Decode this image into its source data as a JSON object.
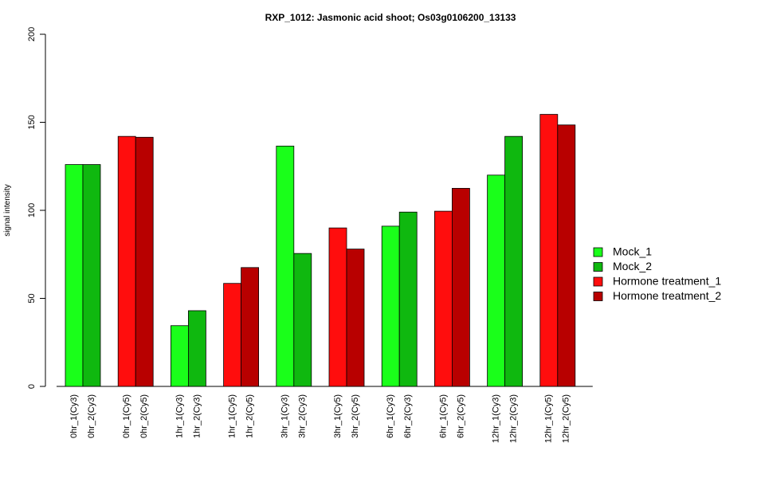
{
  "chart_data": {
    "type": "bar",
    "title": "RXP_1012: Jasmonic acid shoot; Os03g0106200_13133",
    "xlabel": "",
    "ylabel": "signal intensity",
    "ylim": [
      0,
      200
    ],
    "yticks": [
      0,
      50,
      100,
      150,
      200
    ],
    "grid": false,
    "legend_position": "right",
    "categories": [
      "0hr_1(Cy3)",
      "0hr_2(Cy3)",
      "0hr_1(Cy5)",
      "0hr_2(Cy5)",
      "1hr_1(Cy3)",
      "1hr_2(Cy3)",
      "1hr_1(Cy5)",
      "1hr_2(Cy5)",
      "3hr_1(Cy3)",
      "3hr_2(Cy3)",
      "3hr_1(Cy5)",
      "3hr_2(Cy5)",
      "6hr_1(Cy3)",
      "6hr_2(Cy3)",
      "6hr_1(Cy5)",
      "6hr_2(Cy5)",
      "12hr_1(Cy3)",
      "12hr_2(Cy3)",
      "12hr_1(Cy5)",
      "12hr_2(Cy5)"
    ],
    "values": [
      126,
      126,
      142,
      141.5,
      34.5,
      43,
      58.5,
      67.5,
      136.5,
      75.5,
      90,
      78,
      91,
      99,
      99.5,
      112.5,
      120,
      142,
      154.5,
      148.5
    ],
    "series_index": [
      0,
      1,
      2,
      3,
      0,
      1,
      2,
      3,
      0,
      1,
      2,
      3,
      0,
      1,
      2,
      3,
      0,
      1,
      2,
      3
    ],
    "series": [
      {
        "name": "Mock_1",
        "color": "#1aff1a"
      },
      {
        "name": "Mock_2",
        "color": "#0fb80f"
      },
      {
        "name": "Hormone treatment_1",
        "color": "#ff0d0d"
      },
      {
        "name": "Hormone treatment_2",
        "color": "#b80000"
      }
    ]
  }
}
